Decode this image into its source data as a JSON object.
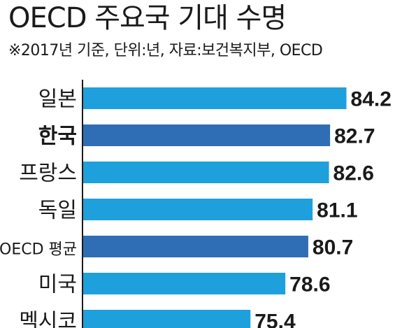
{
  "header": {
    "title": "OECD 주요국 기대 수명",
    "subtitle": "※2017년 기준, 단위:년, 자료:보건복지부, OECD"
  },
  "colors": {
    "bar": "#1ea0dc",
    "highlight": "#2f6db5",
    "axis": "#1a1a1a"
  },
  "chart_data": {
    "type": "bar",
    "orientation": "horizontal",
    "title": "OECD 주요국 기대 수명",
    "subtitle": "※2017년 기준, 단위:년, 자료:보건복지부, OECD",
    "categories": [
      "일본",
      "한국",
      "프랑스",
      "독일",
      "OECD 평균",
      "미국",
      "멕시코"
    ],
    "values": [
      84.2,
      82.7,
      82.6,
      81.1,
      80.7,
      78.6,
      75.4
    ],
    "value_labels": [
      "84.2",
      "82.7",
      "82.6",
      "81.1",
      "80.7",
      "78.6",
      "75.4"
    ],
    "highlighted": [
      "한국",
      "OECD 평균"
    ],
    "xlim": [
      60,
      85
    ],
    "grid": false,
    "legend": "none"
  }
}
